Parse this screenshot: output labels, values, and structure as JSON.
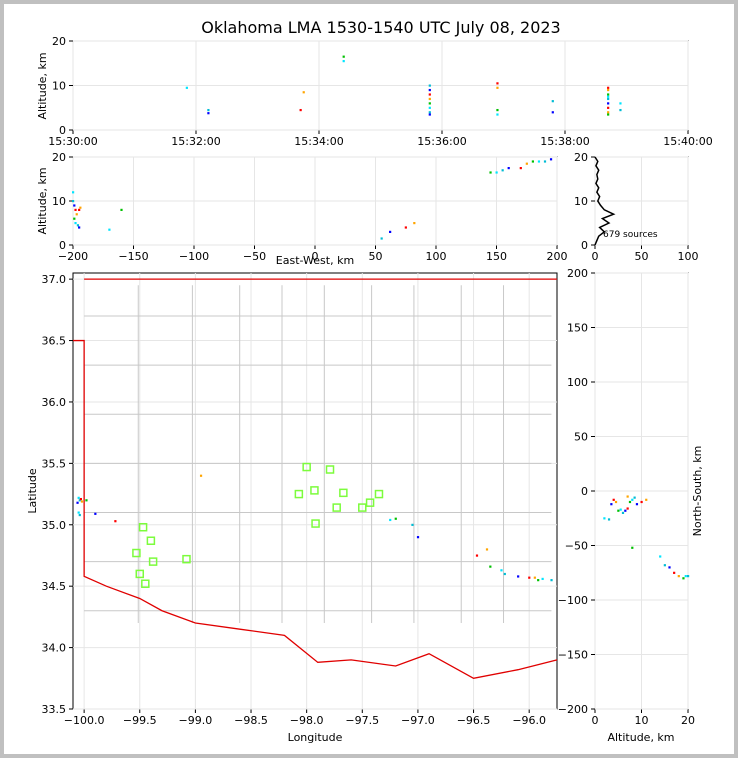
{
  "title": "Oklahoma LMA 1530-1540 UTC July 08, 2023",
  "colors": {
    "background": "#ffffff",
    "outer": "#c0c0c0",
    "border": "#8b0000",
    "county": "#c8c8c8",
    "grid": "#e6e6e6",
    "station": "#7cfc3c"
  },
  "panels": {
    "time_height": {
      "ylabel": "Altitude, km",
      "yticks": [
        "0",
        "10",
        "20"
      ],
      "xticks": [
        "15:30:00",
        "15:32:00",
        "15:34:00",
        "15:36:00",
        "15:38:00",
        "15:40:00"
      ]
    },
    "ew_height": {
      "ylabel": "Altitude, km",
      "xlabel": "East-West, km",
      "yticks": [
        "0",
        "10",
        "20"
      ],
      "xticks": [
        "−200",
        "−150",
        "−100",
        "−50",
        "0",
        "50",
        "100",
        "150",
        "200"
      ]
    },
    "histogram": {
      "yticks": [
        "0",
        "10",
        "20"
      ],
      "xticks": [
        "0",
        "50",
        "100"
      ],
      "note": "679 sources"
    },
    "map": {
      "xlabel": "Longitude",
      "ylabel": "Latitude",
      "xticks": [
        "−100.0",
        "−99.5",
        "−99.0",
        "−98.5",
        "−98.0",
        "−97.5",
        "−97.0",
        "−96.5",
        "−96.0"
      ],
      "yticks": [
        "33.5",
        "34.0",
        "34.5",
        "35.0",
        "35.5",
        "36.0",
        "36.5",
        "37.0"
      ]
    },
    "ns_alt": {
      "xlabel": "Altitude, km",
      "ylabel": "North-South, km",
      "yticks": [
        "−200",
        "−150",
        "−100",
        "−50",
        "0",
        "50",
        "100",
        "150",
        "200"
      ],
      "xticks": [
        "0",
        "10",
        "20"
      ]
    }
  },
  "chart_data": {
    "type": "scatter",
    "title": "Oklahoma LMA 1530-1540 UTC July 08, 2023",
    "source_count": 679,
    "time_height": {
      "xlim_minutes": [
        0,
        10
      ],
      "ylim_km": [
        0,
        20
      ],
      "points": [
        [
          1.85,
          9.5
        ],
        [
          2.2,
          4.5
        ],
        [
          2.2,
          3.8
        ],
        [
          3.7,
          4.5
        ],
        [
          3.75,
          8.5
        ],
        [
          4.4,
          16.5
        ],
        [
          4.4,
          15.5
        ],
        [
          5.8,
          10
        ],
        [
          5.8,
          9
        ],
        [
          5.8,
          8
        ],
        [
          5.8,
          7
        ],
        [
          5.8,
          6
        ],
        [
          5.8,
          5
        ],
        [
          5.8,
          4
        ],
        [
          5.8,
          3.5
        ],
        [
          6.9,
          10.5
        ],
        [
          6.9,
          9.5
        ],
        [
          6.9,
          4.5
        ],
        [
          6.9,
          3.5
        ],
        [
          7.8,
          6.5
        ],
        [
          7.8,
          4
        ],
        [
          8.7,
          9.5
        ],
        [
          8.7,
          9
        ],
        [
          8.7,
          8
        ],
        [
          8.7,
          7.5
        ],
        [
          8.7,
          7
        ],
        [
          8.7,
          6
        ],
        [
          8.7,
          5
        ],
        [
          8.7,
          4
        ],
        [
          8.7,
          3.5
        ],
        [
          8.9,
          6
        ],
        [
          8.9,
          4.5
        ]
      ]
    },
    "ew_height": {
      "xlim_km": [
        -200,
        200
      ],
      "ylim_km": [
        0,
        20
      ],
      "points": [
        [
          -200,
          12
        ],
        [
          -200,
          10
        ],
        [
          -199,
          9
        ],
        [
          -198,
          8
        ],
        [
          -197,
          7
        ],
        [
          -199,
          6
        ],
        [
          -198,
          5
        ],
        [
          -196,
          4.5
        ],
        [
          -195,
          4
        ],
        [
          -195,
          8
        ],
        [
          -194,
          8.5
        ],
        [
          -160,
          8
        ],
        [
          -170,
          3.5
        ],
        [
          55,
          1.5
        ],
        [
          62,
          3
        ],
        [
          75,
          4
        ],
        [
          82,
          5
        ],
        [
          145,
          16.5
        ],
        [
          150,
          16.5
        ],
        [
          155,
          17
        ],
        [
          160,
          17.5
        ],
        [
          170,
          17.5
        ],
        [
          175,
          18.5
        ],
        [
          180,
          19
        ],
        [
          185,
          19
        ],
        [
          190,
          19
        ],
        [
          195,
          19.5
        ]
      ]
    },
    "histogram": {
      "xlim": [
        0,
        100
      ],
      "ylim_km": [
        0,
        20
      ],
      "profile": [
        [
          0,
          0
        ],
        [
          2,
          1
        ],
        [
          4,
          2
        ],
        [
          10,
          3
        ],
        [
          5,
          4
        ],
        [
          15,
          5
        ],
        [
          8,
          6
        ],
        [
          20,
          7
        ],
        [
          10,
          8
        ],
        [
          6,
          9
        ],
        [
          3,
          10
        ],
        [
          5,
          11
        ],
        [
          2,
          12
        ],
        [
          4,
          13
        ],
        [
          1,
          14
        ],
        [
          3,
          15
        ],
        [
          2,
          16
        ],
        [
          4,
          17
        ],
        [
          1,
          18
        ],
        [
          3,
          19
        ],
        [
          0,
          20
        ]
      ]
    },
    "map": {
      "xlim": [
        -100.1,
        -95.75
      ],
      "ylim": [
        33.5,
        37.05
      ],
      "stations": [
        [
          -98.0,
          35.47
        ],
        [
          -97.79,
          35.45
        ],
        [
          -98.07,
          35.25
        ],
        [
          -97.93,
          35.28
        ],
        [
          -97.67,
          35.26
        ],
        [
          -97.35,
          35.25
        ],
        [
          -97.73,
          35.14
        ],
        [
          -97.5,
          35.14
        ],
        [
          -97.43,
          35.18
        ],
        [
          -97.92,
          35.01
        ],
        [
          -99.47,
          34.98
        ],
        [
          -99.4,
          34.87
        ],
        [
          -99.53,
          34.77
        ],
        [
          -99.38,
          34.7
        ],
        [
          -99.08,
          34.72
        ],
        [
          -99.5,
          34.6
        ],
        [
          -99.45,
          34.52
        ]
      ],
      "sources": [
        [
          -100.05,
          35.22
        ],
        [
          -100.04,
          35.2
        ],
        [
          -100.06,
          35.18
        ],
        [
          -100.03,
          35.21
        ],
        [
          -100.02,
          35.19
        ],
        [
          -99.98,
          35.2
        ],
        [
          -100.05,
          35.1
        ],
        [
          -100.04,
          35.08
        ],
        [
          -99.9,
          35.09
        ],
        [
          -99.72,
          35.03
        ],
        [
          -98.95,
          35.4
        ],
        [
          -97.2,
          35.05
        ],
        [
          -97.25,
          35.04
        ],
        [
          -97.05,
          35.0
        ],
        [
          -97.0,
          34.9
        ],
        [
          -96.47,
          34.75
        ],
        [
          -96.38,
          34.8
        ],
        [
          -96.35,
          34.66
        ],
        [
          -96.25,
          34.63
        ],
        [
          -96.22,
          34.6
        ],
        [
          -96.1,
          34.58
        ],
        [
          -96.0,
          34.57
        ],
        [
          -95.95,
          34.57
        ],
        [
          -95.92,
          34.55
        ],
        [
          -95.88,
          34.56
        ],
        [
          -95.8,
          34.55
        ]
      ]
    },
    "ns_alt": {
      "xlim_km": [
        0,
        20
      ],
      "ylim_km": [
        -200,
        200
      ],
      "points": [
        [
          2,
          -25
        ],
        [
          3,
          -26
        ],
        [
          3.5,
          -12
        ],
        [
          4,
          -8
        ],
        [
          4.5,
          -10
        ],
        [
          5,
          -18
        ],
        [
          5.5,
          -17
        ],
        [
          6,
          -20
        ],
        [
          6.5,
          -18
        ],
        [
          7,
          -16
        ],
        [
          7,
          -5
        ],
        [
          7.5,
          -10
        ],
        [
          8,
          -8
        ],
        [
          8.5,
          -6
        ],
        [
          9,
          -12
        ],
        [
          10,
          -10
        ],
        [
          11,
          -8
        ],
        [
          8,
          -52
        ],
        [
          14,
          -60
        ],
        [
          15,
          -68
        ],
        [
          16,
          -70
        ],
        [
          17,
          -75
        ],
        [
          18,
          -78
        ],
        [
          19,
          -80
        ],
        [
          19.5,
          -78
        ],
        [
          20,
          -78
        ]
      ]
    }
  }
}
